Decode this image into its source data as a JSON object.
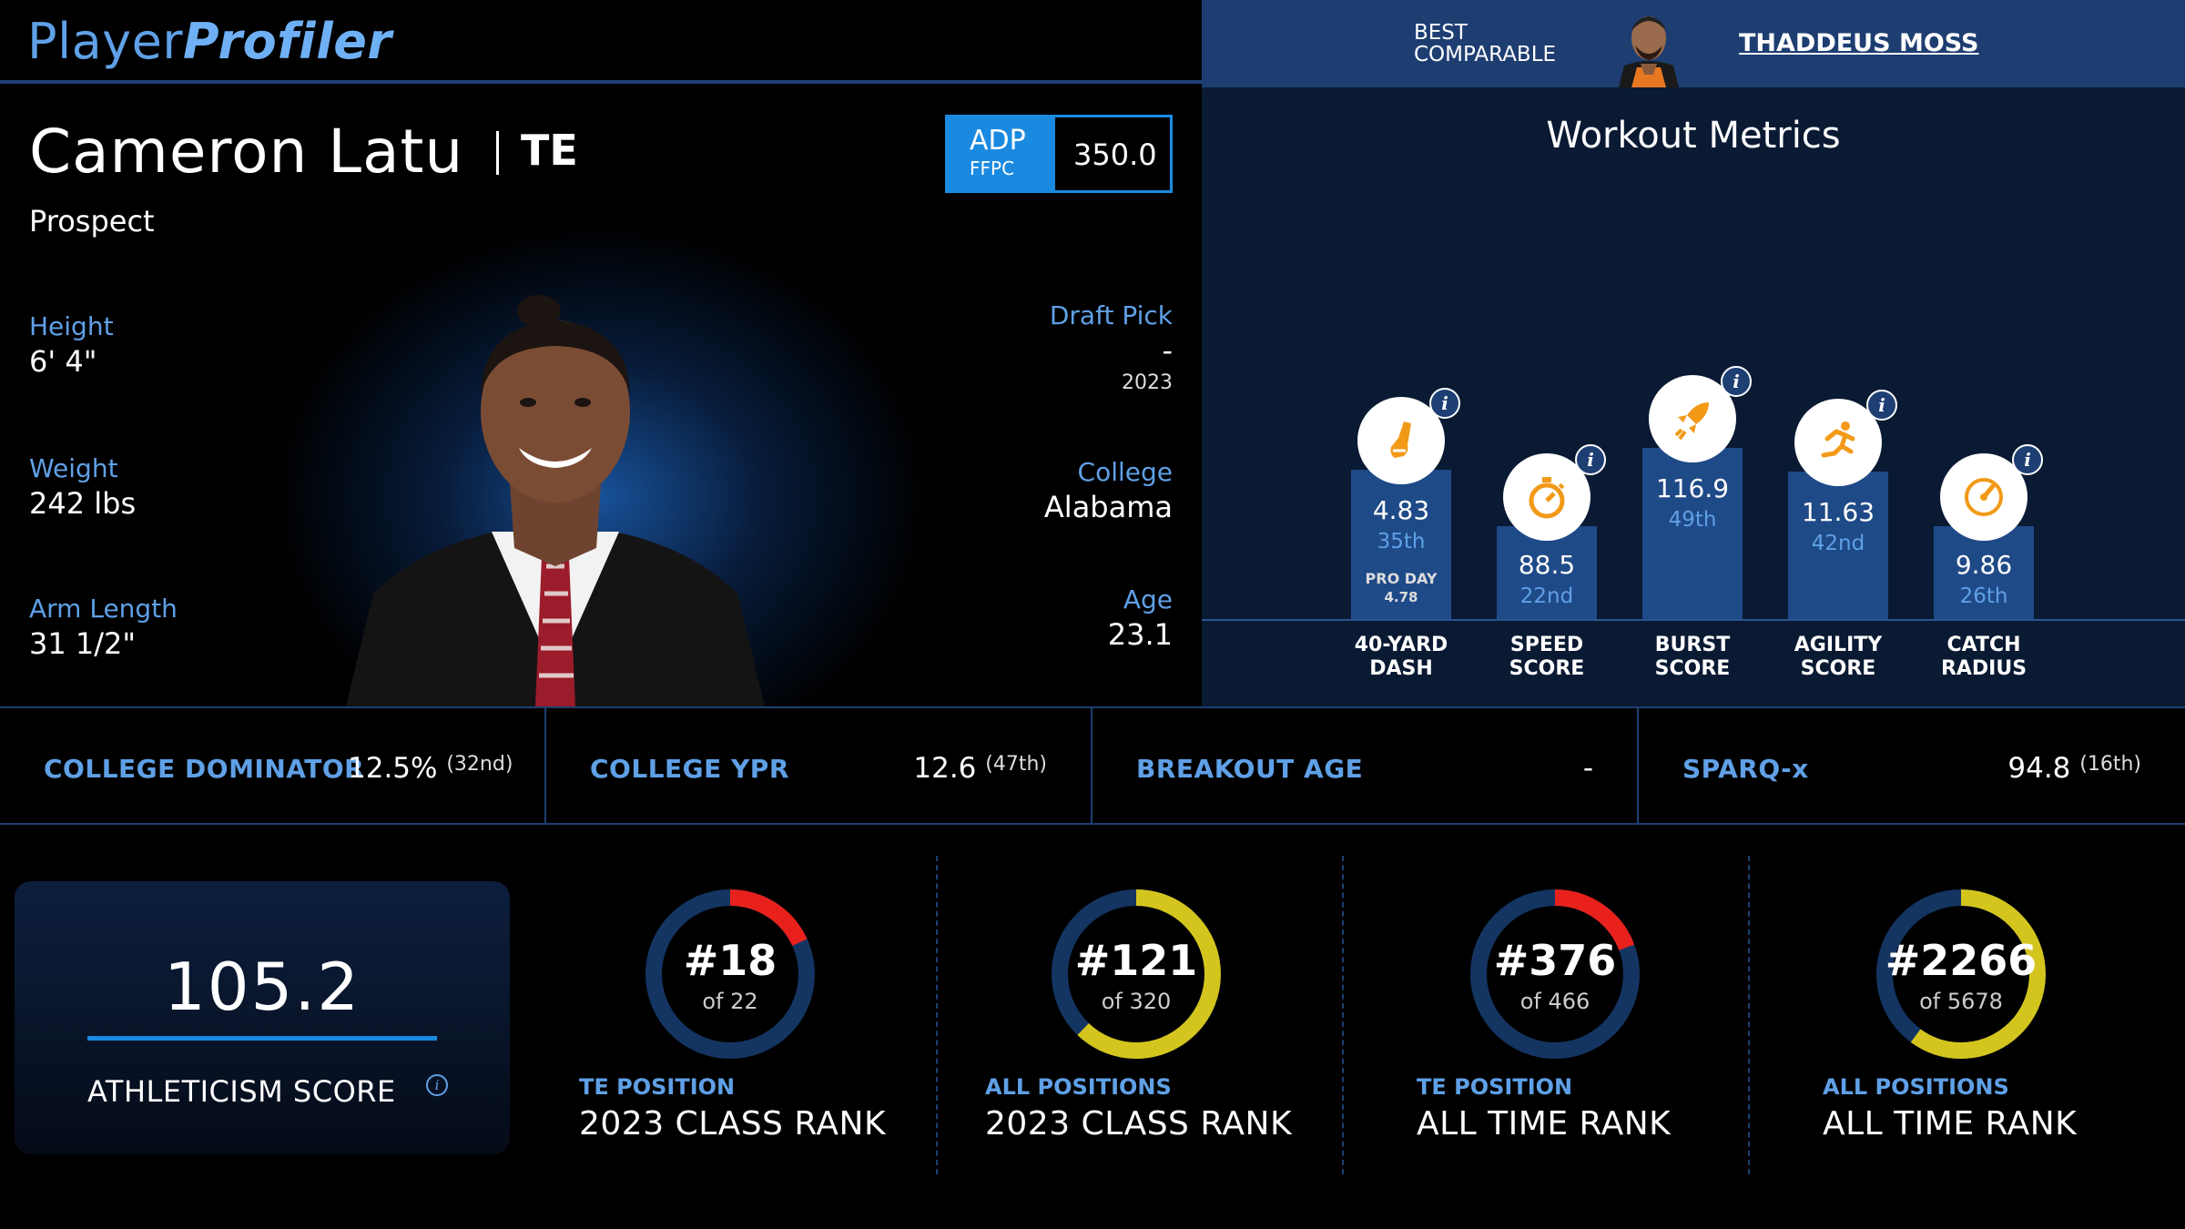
{
  "brand": {
    "part1": "Player",
    "part2": "Profiler"
  },
  "comparable": {
    "label_line1": "BEST",
    "label_line2": "COMPARABLE",
    "name": "THADDEUS MOSS"
  },
  "player": {
    "name": "Cameron Latu",
    "position": "TE",
    "status": "Prospect",
    "adp": {
      "label": "ADP",
      "source": "FFPC",
      "value": "350.0"
    },
    "height": {
      "label": "Height",
      "value": "6' 4\""
    },
    "weight": {
      "label": "Weight",
      "value": "242 lbs"
    },
    "arm_length": {
      "label": "Arm Length",
      "value": "31 1/2\""
    },
    "draft_pick": {
      "label": "Draft Pick",
      "value": "-",
      "year": "2023"
    },
    "college": {
      "label": "College",
      "value": "Alabama"
    },
    "age": {
      "label": "Age",
      "value": "23.1"
    }
  },
  "workout": {
    "title": "Workout Metrics",
    "metrics": [
      {
        "name": "40-yard",
        "label1": "40-YARD",
        "label2": "DASH",
        "value": "4.83",
        "rank": "35th",
        "pro_label": "PRO DAY",
        "pro_value": "4.78",
        "icon": "shoe-icon"
      },
      {
        "name": "speed",
        "label1": "SPEED",
        "label2": "SCORE",
        "value": "88.5",
        "rank": "22nd",
        "icon": "stopwatch-icon"
      },
      {
        "name": "burst",
        "label1": "BURST",
        "label2": "SCORE",
        "value": "116.9",
        "rank": "49th",
        "icon": "rocket-icon"
      },
      {
        "name": "agility",
        "label1": "AGILITY",
        "label2": "SCORE",
        "value": "11.63",
        "rank": "42nd",
        "icon": "runner-icon"
      },
      {
        "name": "catch",
        "label1": "CATCH",
        "label2": "RADIUS",
        "value": "9.86",
        "rank": "26th",
        "icon": "gauge-icon"
      }
    ]
  },
  "strip": [
    {
      "label": "COLLEGE DOMINATOR",
      "value": "12.5%",
      "rank": "(32nd)"
    },
    {
      "label": "COLLEGE YPR",
      "value": "12.6",
      "rank": "(47th)"
    },
    {
      "label": "BREAKOUT AGE",
      "value": "-",
      "rank": ""
    },
    {
      "label": "SPARQ-x",
      "value": "94.8",
      "rank": "(16th)"
    }
  ],
  "athleticism": {
    "score": "105.2",
    "label": "ATHLETICISM SCORE"
  },
  "ranks": [
    {
      "num": "#18",
      "of": "of 22",
      "sub": "TE POSITION",
      "title": "2023 CLASS RANK",
      "rank": 18,
      "total": 22,
      "color": "#e8211d"
    },
    {
      "num": "#121",
      "of": "of 320",
      "sub": "ALL POSITIONS",
      "title": "2023 CLASS RANK",
      "rank": 121,
      "total": 320,
      "color": "#d4c51e"
    },
    {
      "num": "#376",
      "of": "of 466",
      "sub": "TE POSITION",
      "title": "ALL TIME RANK",
      "rank": 376,
      "total": 466,
      "color": "#e8211d"
    },
    {
      "num": "#2266",
      "of": "of 5678",
      "sub": "ALL POSITIONS",
      "title": "ALL TIME RANK",
      "rank": 2266,
      "total": 5678,
      "color": "#d4c51e"
    }
  ],
  "colors": {
    "accent": "#1a8ae0",
    "label_blue": "#5fa0e6",
    "panel": "#0a1a33",
    "bar": "#1f4a88",
    "icon_orange": "#f29a18",
    "track": "#143562"
  }
}
